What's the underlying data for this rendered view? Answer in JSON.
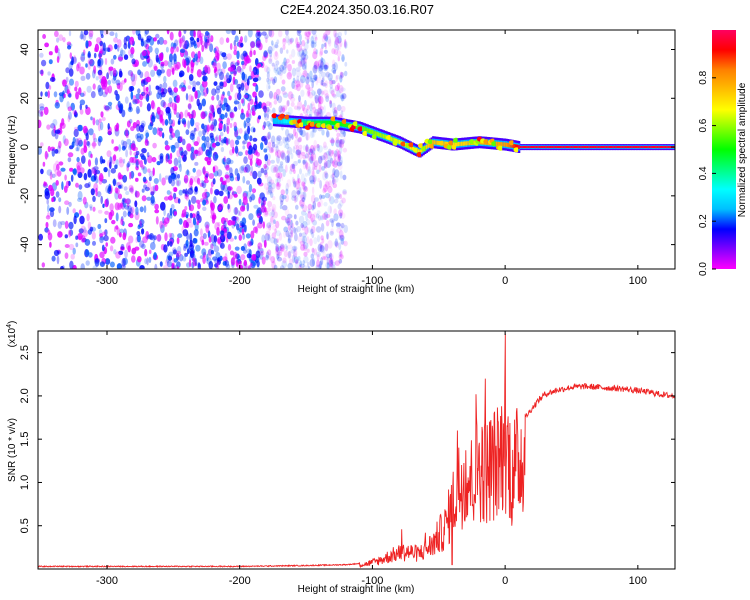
{
  "figure_title": "C2E4.2024.350.03.16.R07",
  "chart_data": [
    {
      "type": "heatmap",
      "panel": "top",
      "xlabel": "Height of straight line (km)",
      "ylabel": "Frequency (Hz)",
      "xlim": [
        -352,
        128
      ],
      "ylim": [
        -50,
        48
      ],
      "x_ticks": [
        "-300",
        "-200",
        "-100",
        "0",
        "100"
      ],
      "x_tick_values": [
        -300,
        -200,
        -100,
        0,
        100
      ],
      "y_ticks": [
        "-40",
        "-20",
        "0",
        "20",
        "40"
      ],
      "y_tick_values": [
        -40,
        -20,
        0,
        20,
        40
      ],
      "colorbar": {
        "label": "Normalized spectral amplitude",
        "range": [
          0,
          1
        ],
        "ticks": [
          "0.0",
          "0.2",
          "0.4",
          "0.6",
          "0.8"
        ],
        "tick_values": [
          0.0,
          0.2,
          0.4,
          0.6,
          0.8
        ],
        "colormap": [
          "#ff00ff",
          "#8000ff",
          "#0000ff",
          "#00bfff",
          "#00ffff",
          "#00ff80",
          "#00ff00",
          "#80ff00",
          "#ffff00",
          "#ffbf00",
          "#ff8000",
          "#ff0000",
          "#ff0060"
        ]
      },
      "features": {
        "noise_region_x": [
          -352,
          -120
        ],
        "noise_amplitude_range": [
          0.0,
          0.3
        ],
        "signal_ridge": [
          {
            "x": -175,
            "freq": 11,
            "amp": 0.25
          },
          {
            "x": -150,
            "freq": 10,
            "amp": 0.45
          },
          {
            "x": -130,
            "freq": 10,
            "amp": 0.5
          },
          {
            "x": -110,
            "freq": 8,
            "amp": 0.55
          },
          {
            "x": -95,
            "freq": 5,
            "amp": 0.6
          },
          {
            "x": -80,
            "freq": 2,
            "amp": 0.65
          },
          {
            "x": -65,
            "freq": -2,
            "amp": 0.7
          },
          {
            "x": -55,
            "freq": 2,
            "amp": 0.75
          },
          {
            "x": -40,
            "freq": 1,
            "amp": 0.7
          },
          {
            "x": -20,
            "freq": 2,
            "amp": 0.75
          },
          {
            "x": 0,
            "freq": 1,
            "amp": 0.8
          },
          {
            "x": 10,
            "freq": 0,
            "amp": 0.95
          },
          {
            "x": 128,
            "freq": 0,
            "amp": 0.95
          }
        ]
      }
    },
    {
      "type": "line",
      "panel": "bottom",
      "xlabel": "Height of straight line (km)",
      "ylabel": "SNR (10 * v/v)",
      "y_multiplier_base": "(x10",
      "y_multiplier_exp": "4",
      "y_multiplier_close": ")",
      "xlim": [
        -352,
        128
      ],
      "ylim": [
        0,
        2.75
      ],
      "x_ticks": [
        "-300",
        "-200",
        "-100",
        "0",
        "100"
      ],
      "x_tick_values": [
        -300,
        -200,
        -100,
        0,
        100
      ],
      "y_ticks": [
        "0.5",
        "1.0",
        "1.5",
        "2.0",
        "2.5"
      ],
      "y_tick_values": [
        0.5,
        1.0,
        1.5,
        2.0,
        2.5
      ],
      "series": [
        {
          "color": "#ee2222",
          "points": [
            [
              -352,
              0.03
            ],
            [
              -300,
              0.03
            ],
            [
              -250,
              0.03
            ],
            [
              -200,
              0.03
            ],
            [
              -150,
              0.04
            ],
            [
              -120,
              0.05
            ],
            [
              -105,
              0.07
            ],
            [
              -95,
              0.12
            ],
            [
              -85,
              0.2
            ],
            [
              -75,
              0.25
            ],
            [
              -65,
              0.22
            ],
            [
              -55,
              0.35
            ],
            [
              -45,
              0.6
            ],
            [
              -40,
              0.9
            ],
            [
              -35,
              1.2
            ],
            [
              -30,
              1.4
            ],
            [
              -25,
              1.25
            ],
            [
              -20,
              1.55
            ],
            [
              -15,
              1.4
            ],
            [
              -10,
              1.5
            ],
            [
              -5,
              1.55
            ],
            [
              0,
              1.85
            ],
            [
              5,
              1.4
            ],
            [
              10,
              1.55
            ],
            [
              15,
              1.75
            ],
            [
              20,
              1.85
            ],
            [
              25,
              1.95
            ],
            [
              30,
              2.02
            ],
            [
              40,
              2.07
            ],
            [
              50,
              2.1
            ],
            [
              60,
              2.11
            ],
            [
              70,
              2.1
            ],
            [
              80,
              2.09
            ],
            [
              90,
              2.08
            ],
            [
              100,
              2.06
            ],
            [
              110,
              2.04
            ],
            [
              120,
              2.01
            ],
            [
              128,
              2.0
            ]
          ],
          "spikes": [
            [
              -78,
              0.46
            ],
            [
              -60,
              0.42
            ],
            [
              -36,
              1.6
            ],
            [
              -22,
              2.02
            ],
            [
              -15,
              2.2
            ],
            [
              0,
              2.72
            ],
            [
              5,
              0.5
            ],
            [
              -40,
              0.05
            ]
          ]
        }
      ]
    }
  ]
}
